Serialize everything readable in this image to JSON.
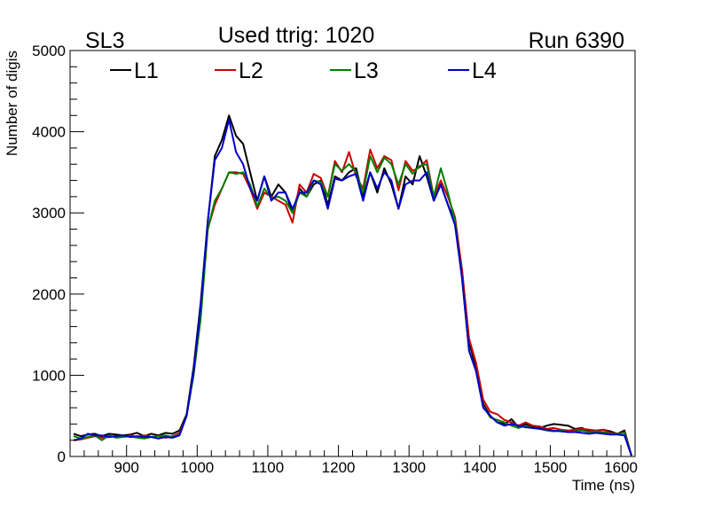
{
  "chart_data": {
    "type": "line",
    "title_left": "SL3",
    "title": "Used ttrig: 1020",
    "title_right": "Run 6390",
    "xlabel": "Time (ns)",
    "ylabel": "Number of digis",
    "xlim": [
      820,
      1620
    ],
    "ylim": [
      0,
      5000
    ],
    "x_ticks": [
      900,
      1000,
      1100,
      1200,
      1300,
      1400,
      1500,
      1600
    ],
    "y_ticks": [
      0,
      1000,
      2000,
      3000,
      4000,
      5000
    ],
    "grid": false,
    "legend_position": "top",
    "x": [
      825,
      835,
      845,
      855,
      865,
      875,
      885,
      895,
      905,
      915,
      925,
      935,
      945,
      955,
      965,
      975,
      985,
      995,
      1005,
      1015,
      1025,
      1035,
      1045,
      1055,
      1065,
      1075,
      1085,
      1095,
      1105,
      1115,
      1125,
      1135,
      1145,
      1155,
      1165,
      1175,
      1185,
      1195,
      1205,
      1215,
      1225,
      1235,
      1245,
      1255,
      1265,
      1275,
      1285,
      1295,
      1305,
      1315,
      1325,
      1335,
      1345,
      1355,
      1365,
      1375,
      1385,
      1395,
      1405,
      1415,
      1425,
      1435,
      1445,
      1455,
      1465,
      1475,
      1485,
      1495,
      1505,
      1515,
      1525,
      1535,
      1545,
      1555,
      1565,
      1575,
      1585,
      1595,
      1605,
      1615
    ],
    "series": [
      {
        "name": "L1",
        "color": "#000000",
        "values": [
          280,
          250,
          270,
          280,
          250,
          280,
          270,
          260,
          270,
          290,
          250,
          280,
          260,
          290,
          280,
          320,
          520,
          1100,
          1900,
          2900,
          3700,
          3900,
          4200,
          3950,
          3850,
          3500,
          3150,
          3450,
          3200,
          3350,
          3250,
          3000,
          3300,
          3200,
          3350,
          3400,
          3100,
          3450,
          3400,
          3500,
          3550,
          3200,
          3500,
          3250,
          3550,
          3350,
          3050,
          3450,
          3350,
          3700,
          3450,
          3150,
          3350,
          3100,
          2900,
          2300,
          1400,
          1100,
          650,
          500,
          420,
          400,
          460,
          360,
          400,
          370,
          350,
          380,
          400,
          390,
          380,
          340,
          350,
          310,
          320,
          330,
          310,
          280,
          320,
          10
        ]
      },
      {
        "name": "L2",
        "color": "#cc0000",
        "values": [
          200,
          210,
          230,
          250,
          230,
          240,
          250,
          240,
          260,
          240,
          260,
          240,
          250,
          230,
          250,
          290,
          500,
          1050,
          1800,
          2800,
          3100,
          3300,
          3500,
          3500,
          3480,
          3300,
          3050,
          3250,
          3200,
          3150,
          3100,
          2880,
          3350,
          3250,
          3480,
          3430,
          3200,
          3640,
          3500,
          3750,
          3450,
          3300,
          3780,
          3550,
          3700,
          3650,
          3280,
          3640,
          3520,
          3560,
          3650,
          3200,
          3400,
          3200,
          2950,
          2300,
          1450,
          1150,
          700,
          550,
          520,
          450,
          420,
          380,
          420,
          380,
          370,
          340,
          350,
          330,
          320,
          330,
          340,
          330,
          320,
          330,
          290,
          280,
          300,
          10
        ]
      },
      {
        "name": "L3",
        "color": "#008000",
        "values": [
          250,
          220,
          240,
          260,
          200,
          260,
          230,
          240,
          250,
          230,
          220,
          240,
          250,
          260,
          240,
          270,
          500,
          1000,
          1700,
          2800,
          3150,
          3300,
          3500,
          3480,
          3500,
          3350,
          3080,
          3300,
          3180,
          3200,
          3150,
          3000,
          3250,
          3200,
          3400,
          3380,
          3200,
          3600,
          3520,
          3600,
          3500,
          3250,
          3700,
          3500,
          3680,
          3600,
          3350,
          3600,
          3480,
          3580,
          3600,
          3200,
          3550,
          3250,
          2900,
          2200,
          1300,
          1050,
          620,
          480,
          450,
          420,
          380,
          350,
          380,
          350,
          340,
          320,
          310,
          320,
          300,
          310,
          320,
          300,
          310,
          300,
          280,
          280,
          290,
          10
        ]
      },
      {
        "name": "L4",
        "color": "#0000cc",
        "values": [
          200,
          220,
          280,
          260,
          260,
          240,
          250,
          260,
          240,
          250,
          240,
          240,
          220,
          240,
          230,
          260,
          500,
          1050,
          1850,
          2900,
          3650,
          3800,
          4150,
          3750,
          3600,
          3300,
          3150,
          3450,
          3150,
          3250,
          3250,
          3050,
          3250,
          3250,
          3400,
          3350,
          3050,
          3420,
          3400,
          3450,
          3480,
          3150,
          3500,
          3300,
          3500,
          3400,
          3050,
          3350,
          3400,
          3400,
          3500,
          3150,
          3350,
          3100,
          2850,
          2200,
          1300,
          1050,
          600,
          500,
          420,
          380,
          400,
          380,
          360,
          350,
          340,
          330,
          320,
          310,
          300,
          300,
          290,
          280,
          290,
          280,
          270,
          270,
          260,
          10
        ]
      }
    ]
  }
}
